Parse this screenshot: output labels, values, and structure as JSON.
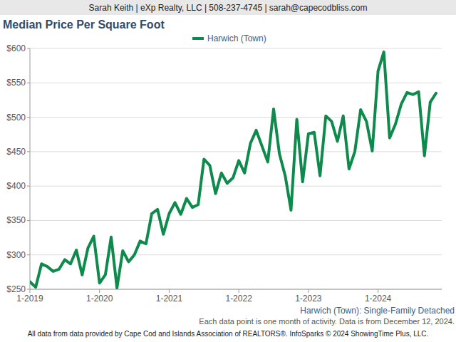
{
  "chart_data": {
    "type": "line",
    "header": "Sarah Keith | eXp Realty, LLC | 508-237-4745 | sarah@capecodbliss.com",
    "title": "Median Price Per Square Foot",
    "subtitle": "Harwich (Town): Single-Family Detached",
    "annotations": [
      "Each data point is one month of activity. Data is from December 12, 2024.",
      "All data from data provided by Cape Cod and Islands Association of REALTORS®. InfoSparks © 2024 ShowingTime Plus, LLC."
    ],
    "categories": [
      "1-2019",
      null,
      null,
      null,
      null,
      null,
      null,
      null,
      null,
      null,
      null,
      null,
      "1-2020",
      null,
      null,
      null,
      null,
      null,
      null,
      null,
      null,
      null,
      null,
      null,
      "1-2021",
      null,
      null,
      null,
      null,
      null,
      null,
      null,
      null,
      null,
      null,
      null,
      "1-2022",
      null,
      null,
      null,
      null,
      null,
      null,
      null,
      null,
      null,
      null,
      null,
      "1-2023",
      null,
      null,
      null,
      null,
      null,
      null,
      null,
      null,
      null,
      null,
      null,
      "1-2024",
      null,
      null,
      null,
      null,
      null,
      null,
      null,
      null,
      null,
      null
    ],
    "series": [
      {
        "name": "Harwich (Town)",
        "color": "#0e8a4c",
        "values": [
          261,
          253,
          287,
          283,
          276,
          279,
          293,
          287,
          307,
          271,
          310,
          327,
          259,
          271,
          326,
          252,
          306,
          290,
          300,
          320,
          316,
          360,
          366,
          330,
          360,
          376,
          359,
          382,
          369,
          373,
          439,
          430,
          389,
          419,
          404,
          412,
          437,
          419,
          462,
          481,
          458,
          435,
          512,
          447,
          415,
          365,
          497,
          406,
          476,
          478,
          415,
          502,
          494,
          465,
          502,
          425,
          450,
          511,
          494,
          451,
          567,
          595,
          470,
          490,
          519,
          536,
          533,
          537,
          444,
          522,
          535
        ]
      }
    ],
    "ylim": [
      250,
      600
    ],
    "yticks": [
      {
        "value": 250,
        "label": "$250"
      },
      {
        "value": 300,
        "label": "$300"
      },
      {
        "value": 350,
        "label": "$350"
      },
      {
        "value": 400,
        "label": "$400"
      },
      {
        "value": 450,
        "label": "$450"
      },
      {
        "value": 500,
        "label": "$500"
      },
      {
        "value": 550,
        "label": "$550"
      },
      {
        "value": 600,
        "label": "$600"
      }
    ],
    "grid": true,
    "legend": "top"
  }
}
